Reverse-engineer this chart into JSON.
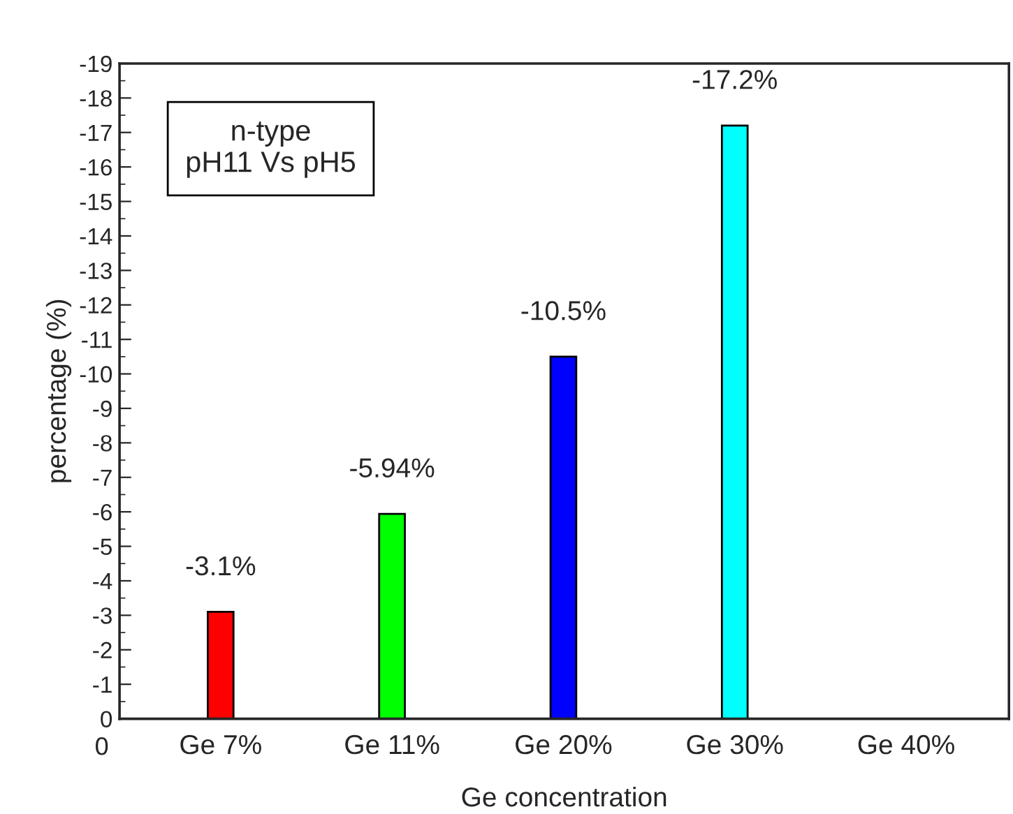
{
  "chart_data": {
    "type": "bar",
    "xlabel": "Ge concentration",
    "ylabel": "percentage (%)",
    "categories": [
      "Ge 7%",
      "Ge 11%",
      "Ge 20%",
      "Ge 30%",
      "Ge 40%"
    ],
    "values": [
      -3.1,
      -5.94,
      -10.5,
      -17.2,
      null
    ],
    "colors": [
      "#ff0000",
      "#00ff00",
      "#0000ff",
      "#00ffff",
      "#ffffff"
    ],
    "value_labels": [
      "-3.1%",
      "-5.94%",
      "-10.5%",
      "-17.2%",
      null
    ],
    "ylim": [
      0,
      -19
    ],
    "yticks": [
      0,
      -1,
      -2,
      -3,
      -4,
      -5,
      -6,
      -7,
      -8,
      -9,
      -10,
      -11,
      -12,
      -13,
      -14,
      -15,
      -16,
      -17,
      -18,
      -19
    ],
    "annotations": [
      "0",
      "n-type\npH11 Vs pH5"
    ],
    "grid": false,
    "legend": false
  }
}
